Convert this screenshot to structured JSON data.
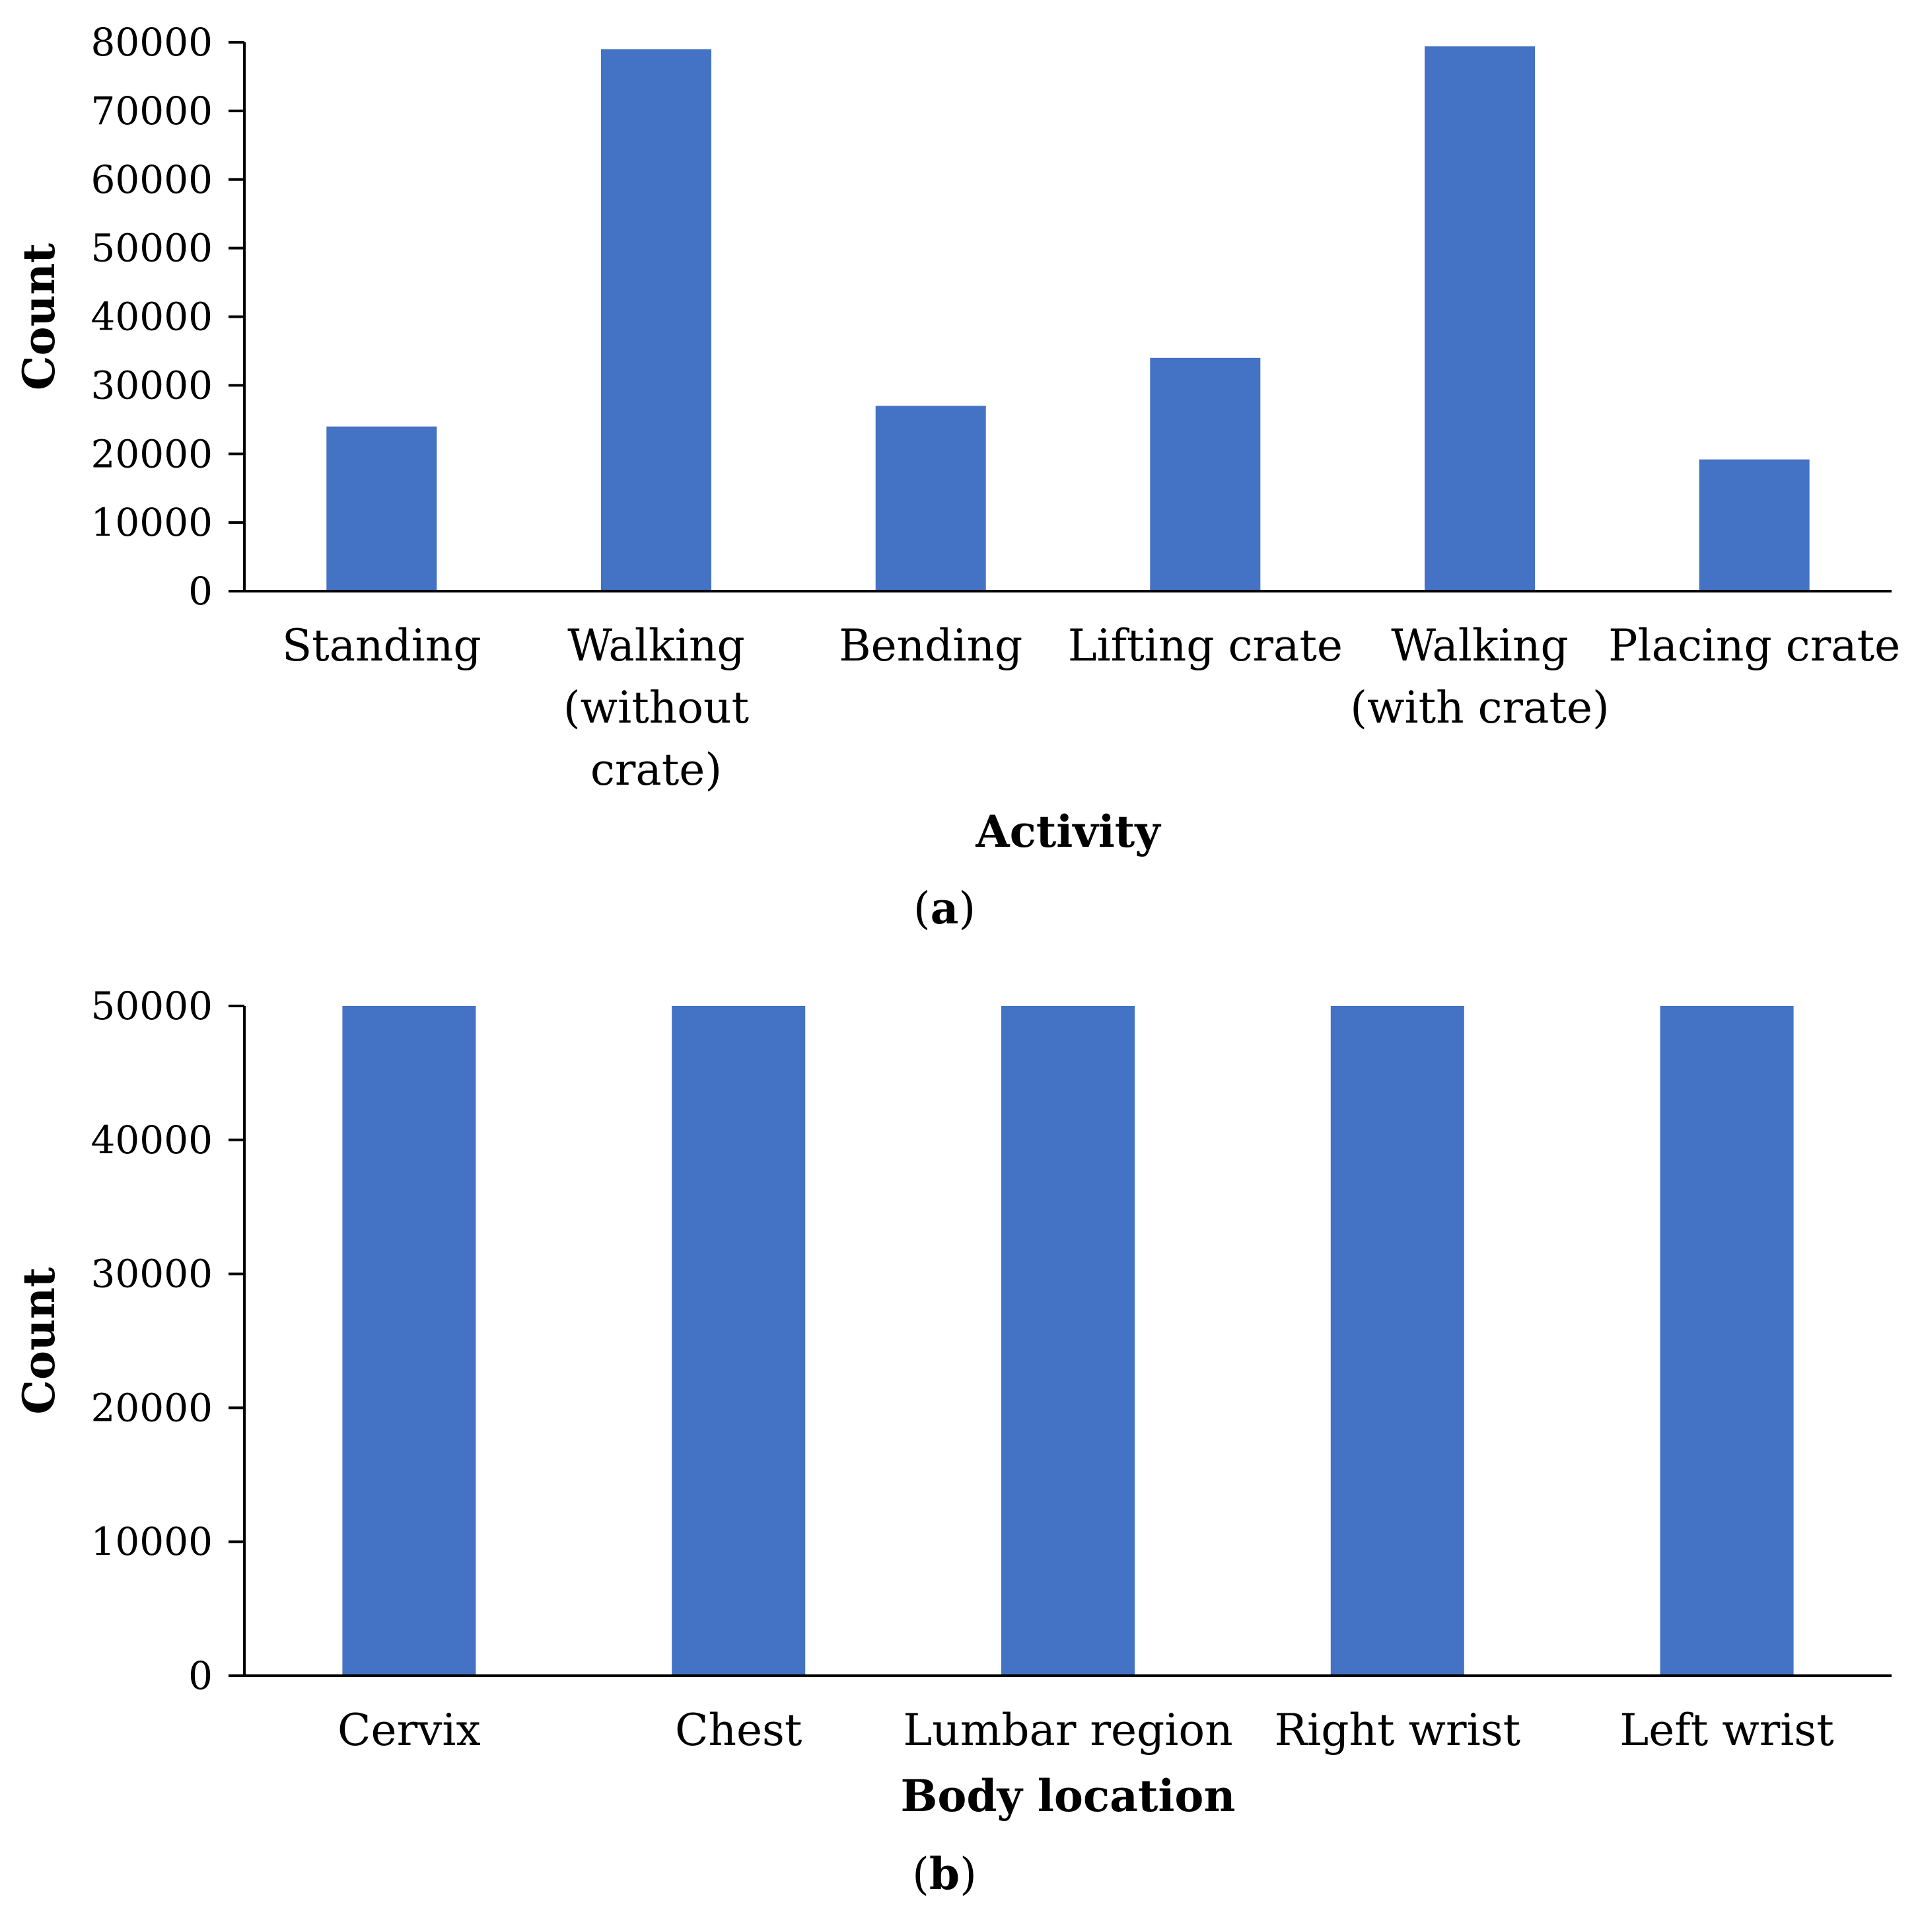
{
  "colors": {
    "bar": "#4472C4",
    "axis": "#000000"
  },
  "chart_data": [
    {
      "type": "bar",
      "panel_label": "a",
      "title": "",
      "xlabel": "Activity",
      "ylabel": "Count",
      "ylim": [
        0,
        80000
      ],
      "yticks": [
        "0",
        "10000",
        "20000",
        "30000",
        "40000",
        "50000",
        "60000",
        "70000",
        "80000"
      ],
      "categories": [
        [
          "Standing"
        ],
        [
          "Walking",
          "(without",
          "crate)"
        ],
        [
          "Bending"
        ],
        [
          "Lifting crate"
        ],
        [
          "Walking",
          "(with crate)"
        ],
        [
          "Placing crate"
        ]
      ],
      "values": [
        24000,
        79000,
        27000,
        34000,
        79400,
        19200
      ],
      "grid": false
    },
    {
      "type": "bar",
      "panel_label": "b",
      "title": "",
      "xlabel": "Body location",
      "ylabel": "Count",
      "ylim": [
        0,
        50000
      ],
      "yticks": [
        "0",
        "10000",
        "20000",
        "30000",
        "40000",
        "50000"
      ],
      "categories": [
        [
          "Cervix"
        ],
        [
          "Chest"
        ],
        [
          "Lumbar region"
        ],
        [
          "Right wrist"
        ],
        [
          "Left wrist"
        ]
      ],
      "values": [
        50000,
        50000,
        50000,
        50000,
        50000
      ],
      "grid": false
    }
  ]
}
